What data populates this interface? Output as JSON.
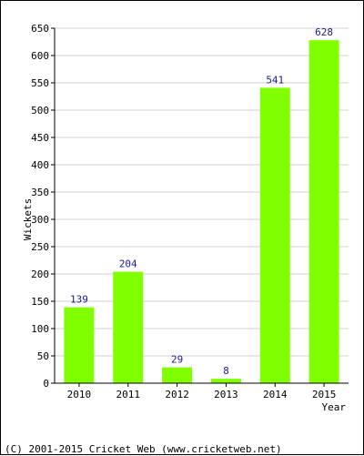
{
  "chart_data": {
    "type": "bar",
    "categories": [
      "2010",
      "2011",
      "2012",
      "2013",
      "2014",
      "2015"
    ],
    "values": [
      139,
      204,
      29,
      8,
      541,
      628
    ],
    "data_labels": [
      "139",
      "204",
      "29",
      "8",
      "541",
      "628"
    ],
    "title": "",
    "xlabel": "Year",
    "ylabel": "Wickets",
    "ylim": [
      0,
      650
    ],
    "yticks": [
      0,
      50,
      100,
      150,
      200,
      250,
      300,
      350,
      400,
      450,
      500,
      550,
      600,
      650
    ],
    "grid": true,
    "legend": "none",
    "colors": {
      "bar": "#80ff00",
      "grid": "#d0d0d0",
      "axis": "#000000",
      "data_label": "#1a1a8c"
    }
  },
  "footer": {
    "copyright": "(C) 2001-2015 Cricket Web (www.cricketweb.net)"
  }
}
